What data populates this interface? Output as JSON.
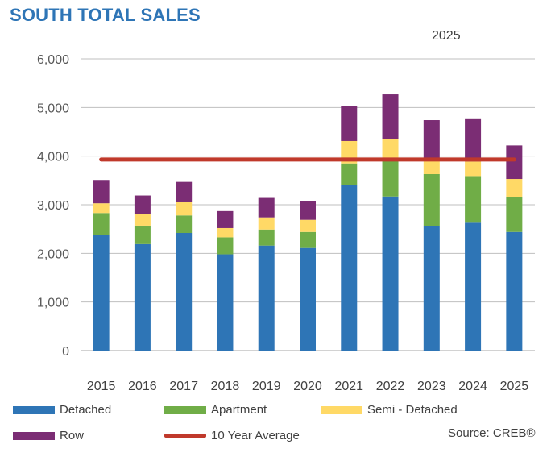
{
  "chart_data": {
    "type": "bar",
    "stacked": true,
    "title": "SOUTH TOTAL SALES",
    "subtitle": "2025",
    "xlabel": "",
    "ylabel": "",
    "ylim": [
      0,
      6000
    ],
    "yticks": [
      0,
      1000,
      2000,
      3000,
      4000,
      5000,
      6000
    ],
    "ytick_labels": [
      "0",
      "1,000",
      "2,000",
      "3,000",
      "4,000",
      "5,000",
      "6,000"
    ],
    "categories": [
      "2015",
      "2016",
      "2017",
      "2018",
      "2019",
      "2020",
      "2021",
      "2022",
      "2023",
      "2024",
      "2025"
    ],
    "series": [
      {
        "name": "Detached",
        "color": "#2E75B6",
        "values": [
          2380,
          2190,
          2420,
          1980,
          2160,
          2110,
          3400,
          3170,
          2560,
          2630,
          2440
        ]
      },
      {
        "name": "Apartment",
        "color": "#70AD47",
        "values": [
          450,
          380,
          360,
          350,
          330,
          330,
          450,
          800,
          1070,
          960,
          710
        ]
      },
      {
        "name": "Semi - Detached",
        "color": "#FFD966",
        "values": [
          200,
          240,
          270,
          190,
          250,
          250,
          460,
          380,
          330,
          300,
          380
        ]
      },
      {
        "name": "Row",
        "color": "#7B2D74",
        "values": [
          480,
          380,
          420,
          350,
          400,
          390,
          720,
          920,
          780,
          870,
          690
        ]
      }
    ],
    "average_line": {
      "name": "10 Year Average",
      "color": "#C0392B",
      "value": 3930
    },
    "grid": true,
    "legend_position": "bottom"
  },
  "legend": {
    "detached": "Detached",
    "apartment": "Apartment",
    "semi": "Semi - Detached",
    "row": "Row",
    "average": "10 Year Average"
  },
  "source": "Source: CREB®"
}
